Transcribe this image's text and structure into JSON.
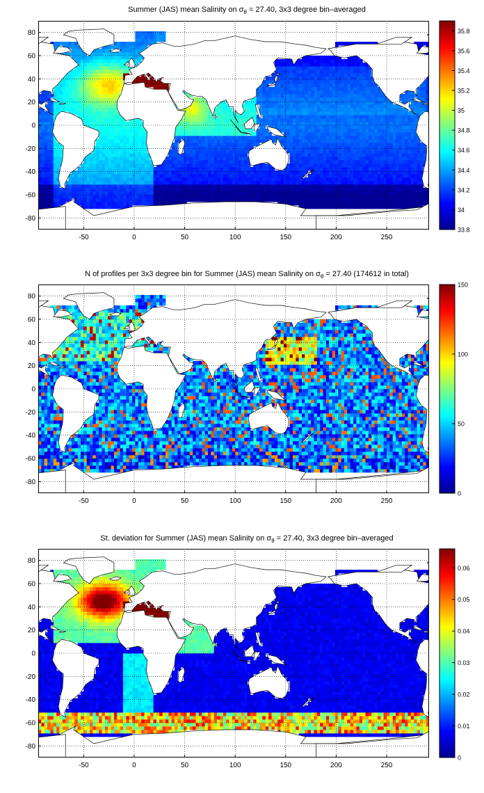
{
  "chart_data": [
    {
      "type": "heatmap",
      "title_prefix": "Summer (JAS) mean Salinity on ",
      "title_sym": "σ",
      "title_sub": "θ",
      "title_suffix": " = 27.40, 3x3 degree bin–averaged",
      "xlim": [
        -95,
        292
      ],
      "ylim": [
        -90,
        90
      ],
      "x_ticks": [
        -50,
        0,
        50,
        100,
        150,
        200,
        250
      ],
      "y_ticks": [
        -80,
        -60,
        -40,
        -20,
        0,
        20,
        40,
        60,
        80
      ],
      "grid": true,
      "colorbar": {
        "min": 33.8,
        "max": 35.9,
        "ticks": [
          33.8,
          34,
          34.2,
          34.4,
          34.6,
          34.8,
          35,
          35.2,
          35.4,
          35.6,
          35.8
        ]
      },
      "colormap": "jet"
    },
    {
      "type": "heatmap",
      "title_prefix": "N of profiles per 3x3 degree bin for Summer (JAS) mean Salinity on ",
      "title_sym": "σ",
      "title_sub": "θ",
      "title_suffix": " = 27.40 (174612 in total)",
      "xlim": [
        -95,
        292
      ],
      "ylim": [
        -90,
        90
      ],
      "x_ticks": [
        -50,
        0,
        50,
        100,
        150,
        200,
        250
      ],
      "y_ticks": [
        -80,
        -60,
        -40,
        -20,
        0,
        20,
        40,
        60,
        80
      ],
      "grid": true,
      "colorbar": {
        "min": 0,
        "max": 150,
        "ticks": [
          0,
          50,
          100,
          150
        ]
      },
      "colormap": "jet"
    },
    {
      "type": "heatmap",
      "title_prefix": "St. deviation for Summer (JAS) mean Salinity on ",
      "title_sym": "σ",
      "title_sub": "θ",
      "title_suffix": " = 27.40, 3x3 degree bin–averaged",
      "xlim": [
        -95,
        292
      ],
      "ylim": [
        -90,
        90
      ],
      "x_ticks": [
        -50,
        0,
        50,
        100,
        150,
        200,
        250
      ],
      "y_ticks": [
        -80,
        -60,
        -40,
        -20,
        0,
        20,
        40,
        60,
        80
      ],
      "grid": true,
      "colorbar": {
        "min": 0,
        "max": 0.066,
        "ticks": [
          0,
          0.01,
          0.02,
          0.03,
          0.04,
          0.05,
          0.06
        ]
      },
      "colormap": "jet"
    }
  ]
}
